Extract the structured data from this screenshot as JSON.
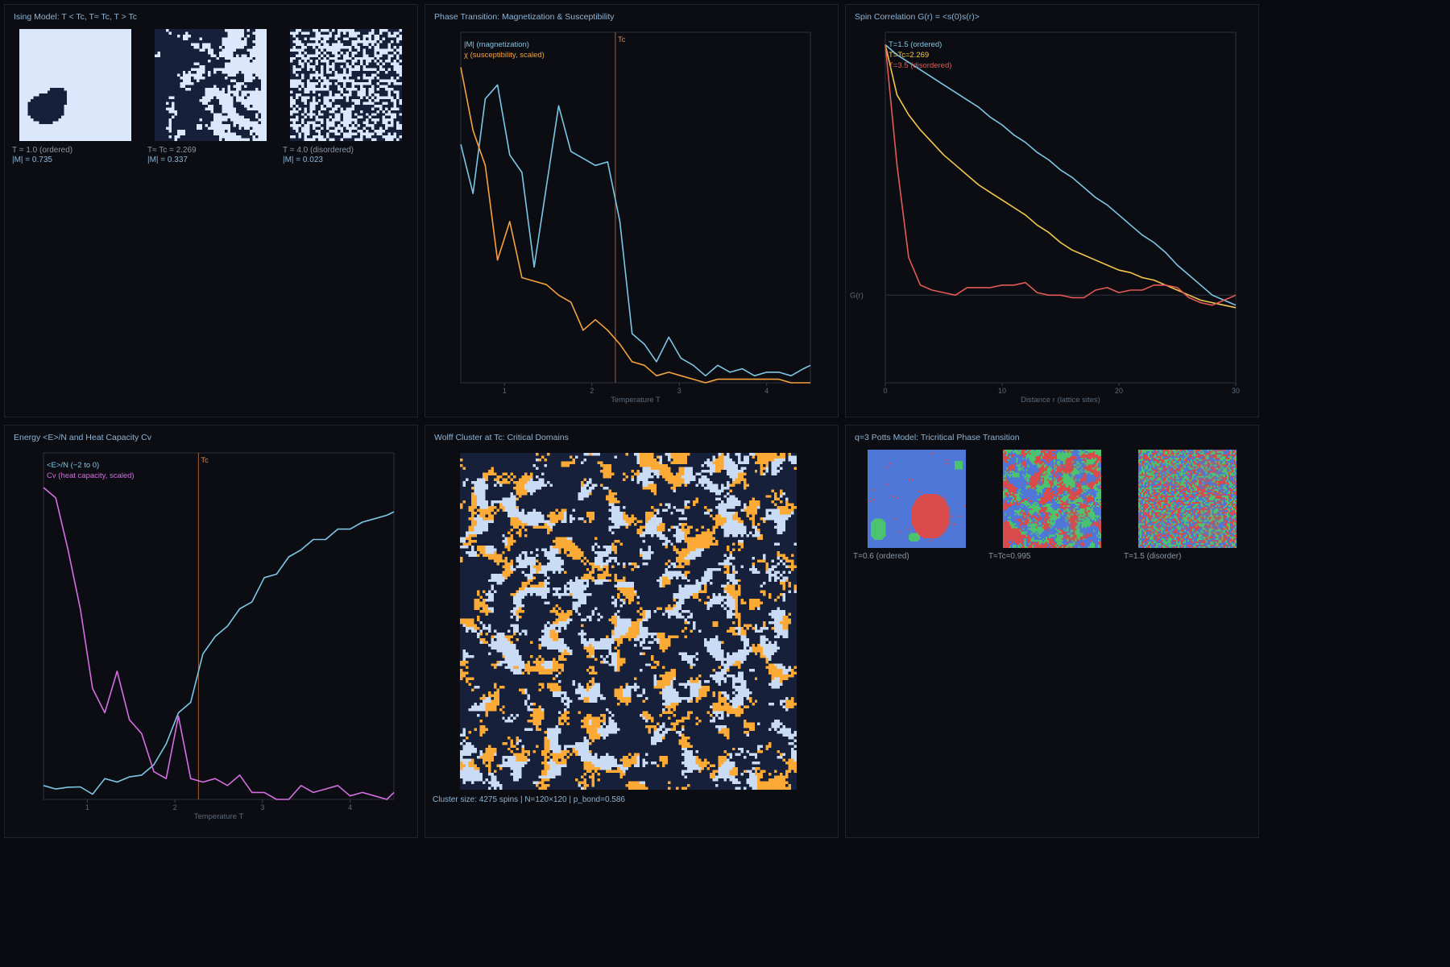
{
  "panels": {
    "ising": {
      "title": "Ising Model: T < Tc, T≈ Tc, T > Tc",
      "snapshots": [
        {
          "label": "T = 1.0 (ordered)",
          "mag": "|M| = 0.735",
          "density": 0.0
        },
        {
          "label": "T≈ Tc = 2.269",
          "mag": "|M| = 0.337",
          "density": 0.5
        },
        {
          "label": "T = 4.0 (disordered)",
          "mag": "|M| = 0.023",
          "density": 0.5
        }
      ]
    },
    "wolff": {
      "title": "Wolff Cluster at Tc: Critical Domains",
      "caption": "Cluster size: 4275 spins | N=120×120 | p_bond=0.586"
    },
    "potts": {
      "title": "q=3 Potts Model: Tricritical Phase Transition",
      "snapshots": [
        {
          "label": "T=0.6 (ordered)"
        },
        {
          "label": "T≈Tc=0.995"
        },
        {
          "label": "T=1.5 (disorder)"
        }
      ]
    }
  },
  "colors": {
    "spin_up": "#dbe8fb",
    "spin_down": "#16203a",
    "cluster": "#fbaa36",
    "cluster_bg_light": "#c9dbf5",
    "potts": [
      "#4f77d8",
      "#d94a4a",
      "#4cc46f"
    ],
    "blue_line": "#7ec6e6",
    "orange_line": "#f6a23d",
    "red_line": "#e25a55",
    "yellow_line": "#f4c94a",
    "magenta_line": "#d66ee0",
    "tc_line": "#a0603a"
  },
  "chart_data": [
    {
      "type": "line",
      "title": "Phase Transition: Magnetization & Susceptibility",
      "xlabel": "Temperature T",
      "ylabel": "",
      "xlim": [
        0.5,
        4.5
      ],
      "ylim": [
        0,
        1
      ],
      "xticks": [
        1,
        2,
        3,
        4
      ],
      "tc": 2.269,
      "tc_label": "Tc",
      "series": [
        {
          "name": "|M| (magnetization)",
          "color": "#7ec6e6",
          "x": [
            0.5,
            0.64,
            0.78,
            0.92,
            1.06,
            1.2,
            1.34,
            1.48,
            1.62,
            1.76,
            1.9,
            2.04,
            2.18,
            2.32,
            2.46,
            2.6,
            2.74,
            2.88,
            3.02,
            3.16,
            3.3,
            3.44,
            3.58,
            3.72,
            3.86,
            4.0,
            4.14,
            4.28,
            4.42,
            4.5
          ],
          "y": [
            0.68,
            0.54,
            0.81,
            0.85,
            0.65,
            0.6,
            0.33,
            0.56,
            0.79,
            0.66,
            0.64,
            0.62,
            0.63,
            0.46,
            0.14,
            0.11,
            0.06,
            0.13,
            0.07,
            0.05,
            0.02,
            0.05,
            0.03,
            0.04,
            0.02,
            0.03,
            0.03,
            0.02,
            0.04,
            0.05
          ]
        },
        {
          "name": "χ (susceptibility, scaled)",
          "color": "#f6a23d",
          "x": [
            0.5,
            0.64,
            0.78,
            0.92,
            1.06,
            1.2,
            1.34,
            1.48,
            1.62,
            1.76,
            1.9,
            2.04,
            2.18,
            2.32,
            2.46,
            2.6,
            2.74,
            2.88,
            3.02,
            3.16,
            3.3,
            3.44,
            3.58,
            3.72,
            3.86,
            4.0,
            4.14,
            4.28,
            4.42,
            4.5
          ],
          "y": [
            0.9,
            0.72,
            0.62,
            0.35,
            0.46,
            0.3,
            0.29,
            0.28,
            0.25,
            0.23,
            0.15,
            0.18,
            0.15,
            0.11,
            0.06,
            0.05,
            0.02,
            0.03,
            0.02,
            0.01,
            0.0,
            0.01,
            0.01,
            0.01,
            0.01,
            0.01,
            0.01,
            0.0,
            0.0,
            0.0
          ]
        }
      ]
    },
    {
      "type": "line",
      "title": "Spin Correlation G(r) = <s(0)s(r)>",
      "xlabel": "Distance r (lattice sites)",
      "ylabel": "G(r)",
      "xlim": [
        0,
        30
      ],
      "ylim": [
        -0.35,
        1.05
      ],
      "xticks": [
        0,
        10,
        20,
        30
      ],
      "series": [
        {
          "name": "T=1.5 (ordered)",
          "color": "#7ec6e6",
          "x": [
            0,
            1,
            2,
            3,
            4,
            5,
            6,
            7,
            8,
            9,
            10,
            11,
            12,
            13,
            14,
            15,
            16,
            17,
            18,
            19,
            20,
            21,
            22,
            23,
            24,
            25,
            26,
            27,
            28,
            29,
            30
          ],
          "y": [
            1.0,
            0.96,
            0.93,
            0.9,
            0.87,
            0.84,
            0.81,
            0.78,
            0.75,
            0.71,
            0.68,
            0.64,
            0.61,
            0.57,
            0.54,
            0.5,
            0.47,
            0.43,
            0.39,
            0.36,
            0.32,
            0.28,
            0.24,
            0.21,
            0.17,
            0.12,
            0.08,
            0.04,
            0.0,
            -0.02,
            -0.04
          ]
        },
        {
          "name": "T=Tc=2.269",
          "color": "#f4c94a",
          "x": [
            0,
            1,
            2,
            3,
            4,
            5,
            6,
            7,
            8,
            9,
            10,
            11,
            12,
            13,
            14,
            15,
            16,
            17,
            18,
            19,
            20,
            21,
            22,
            23,
            24,
            25,
            26,
            27,
            28,
            29,
            30
          ],
          "y": [
            1.0,
            0.8,
            0.72,
            0.66,
            0.61,
            0.56,
            0.52,
            0.48,
            0.44,
            0.41,
            0.38,
            0.35,
            0.32,
            0.28,
            0.25,
            0.21,
            0.18,
            0.16,
            0.14,
            0.12,
            0.1,
            0.09,
            0.07,
            0.06,
            0.04,
            0.02,
            0.0,
            -0.02,
            -0.03,
            -0.04,
            -0.05
          ]
        },
        {
          "name": "T=3.5 (disordered)",
          "color": "#e25a55",
          "x": [
            0,
            1,
            2,
            3,
            4,
            5,
            6,
            7,
            8,
            9,
            10,
            11,
            12,
            13,
            14,
            15,
            16,
            17,
            18,
            19,
            20,
            21,
            22,
            23,
            24,
            25,
            26,
            27,
            28,
            29,
            30
          ],
          "y": [
            1.0,
            0.52,
            0.15,
            0.04,
            0.02,
            0.01,
            0.0,
            0.03,
            0.03,
            0.03,
            0.04,
            0.04,
            0.05,
            0.01,
            0.0,
            0.0,
            -0.01,
            -0.01,
            0.02,
            0.03,
            0.01,
            0.02,
            0.02,
            0.04,
            0.04,
            0.03,
            -0.01,
            -0.03,
            -0.04,
            -0.02,
            0.0
          ]
        }
      ]
    },
    {
      "type": "line",
      "title": "Energy <E>/N and Heat Capacity Cv",
      "xlabel": "Temperature T",
      "ylabel": "",
      "xlim": [
        0.5,
        4.5
      ],
      "ylim": [
        0,
        1
      ],
      "xticks": [
        1,
        2,
        3,
        4
      ],
      "tc": 2.269,
      "tc_label": "Tc",
      "series": [
        {
          "name": "<E>/N (−2 to 0)",
          "color": "#7ec6e6",
          "x": [
            0.5,
            0.64,
            0.78,
            0.92,
            1.06,
            1.2,
            1.34,
            1.48,
            1.62,
            1.76,
            1.9,
            2.04,
            2.18,
            2.32,
            2.46,
            2.6,
            2.74,
            2.88,
            3.02,
            3.16,
            3.3,
            3.44,
            3.58,
            3.72,
            3.86,
            4.0,
            4.14,
            4.28,
            4.42,
            4.5
          ],
          "y": [
            0.04,
            0.03,
            0.035,
            0.036,
            0.015,
            0.06,
            0.05,
            0.065,
            0.07,
            0.1,
            0.16,
            0.25,
            0.28,
            0.42,
            0.47,
            0.5,
            0.55,
            0.57,
            0.64,
            0.65,
            0.7,
            0.72,
            0.75,
            0.75,
            0.78,
            0.78,
            0.8,
            0.81,
            0.82,
            0.83
          ]
        },
        {
          "name": "Cv (heat capacity, scaled)",
          "color": "#d66ee0",
          "x": [
            0.5,
            0.64,
            0.78,
            0.92,
            1.06,
            1.2,
            1.34,
            1.48,
            1.62,
            1.76,
            1.9,
            2.04,
            2.18,
            2.32,
            2.46,
            2.6,
            2.74,
            2.88,
            3.02,
            3.16,
            3.3,
            3.44,
            3.58,
            3.72,
            3.86,
            4.0,
            4.14,
            4.28,
            4.42,
            4.5
          ],
          "y": [
            0.9,
            0.87,
            0.72,
            0.55,
            0.32,
            0.25,
            0.37,
            0.23,
            0.19,
            0.08,
            0.06,
            0.24,
            0.06,
            0.05,
            0.06,
            0.04,
            0.07,
            0.02,
            0.02,
            0.0,
            0.0,
            0.04,
            0.02,
            0.03,
            0.04,
            0.01,
            0.02,
            0.01,
            0.0,
            0.02
          ]
        }
      ]
    }
  ]
}
